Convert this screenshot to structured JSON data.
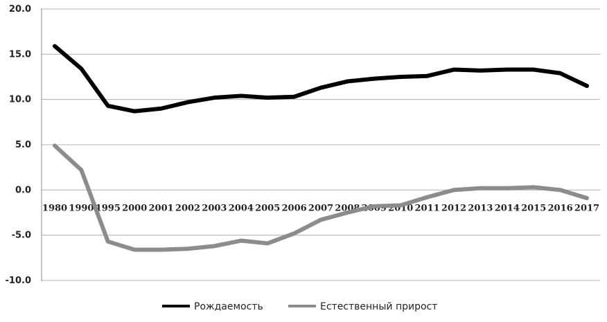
{
  "chart_data": {
    "type": "line",
    "categories": [
      "1980",
      "1990",
      "1995",
      "2000",
      "2001",
      "2002",
      "2003",
      "2004",
      "2005",
      "2006",
      "2007",
      "2008",
      "2009",
      "2010",
      "2011",
      "2012",
      "2013",
      "2014",
      "2015",
      "2016",
      "2017"
    ],
    "series": [
      {
        "name": "Рождаемость",
        "color": "#000000",
        "values": [
          15.9,
          13.4,
          9.3,
          8.7,
          9.0,
          9.7,
          10.2,
          10.4,
          10.2,
          10.3,
          11.3,
          12.0,
          12.3,
          12.5,
          12.6,
          13.3,
          13.2,
          13.3,
          13.3,
          12.9,
          11.5
        ]
      },
      {
        "name": "Естественный прирост",
        "color": "#8c8c8c",
        "values": [
          4.9,
          2.2,
          -5.7,
          -6.6,
          -6.6,
          -6.5,
          -6.2,
          -5.6,
          -5.9,
          -4.8,
          -3.3,
          -2.5,
          -1.8,
          -1.7,
          -0.8,
          0.0,
          0.2,
          0.2,
          0.3,
          0.0,
          -0.9
        ]
      }
    ],
    "yticks": [
      "20.0",
      "15.0",
      "10.0",
      "5.0",
      "0.0",
      "-5.0",
      "-10.0"
    ],
    "ytick_values": [
      20,
      15,
      10,
      5,
      0,
      -5,
      -10
    ],
    "ylim": [
      -10,
      20
    ],
    "grid": true,
    "legend": "bottom",
    "gridline_color": "#b0b0b0"
  }
}
